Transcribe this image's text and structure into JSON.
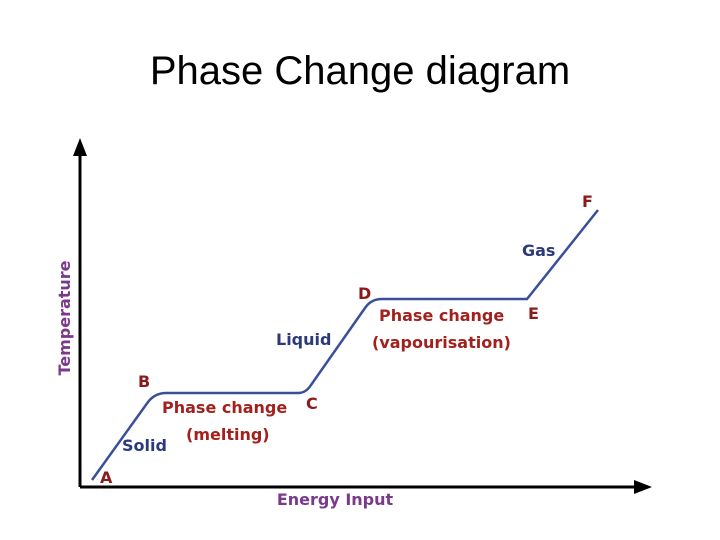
{
  "title": "Phase Change diagram",
  "axes": {
    "x_label": "Energy Input",
    "y_label": "Temperature"
  },
  "points": [
    "A",
    "B",
    "C",
    "D",
    "E",
    "F"
  ],
  "states": {
    "solid": "Solid",
    "liquid": "Liquid",
    "gas": "Gas"
  },
  "melting": {
    "label": "Phase change",
    "detail": "(melting)"
  },
  "vaporisation": {
    "label": "Phase change",
    "detail": "(vapourisation)"
  }
}
